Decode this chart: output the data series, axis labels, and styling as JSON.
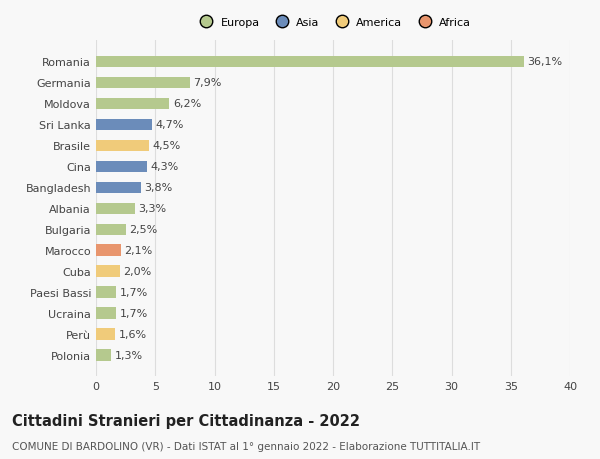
{
  "countries": [
    "Romania",
    "Germania",
    "Moldova",
    "Sri Lanka",
    "Brasile",
    "Cina",
    "Bangladesh",
    "Albania",
    "Bulgaria",
    "Marocco",
    "Cuba",
    "Paesi Bassi",
    "Ucraina",
    "Perù",
    "Polonia"
  ],
  "values": [
    36.1,
    7.9,
    6.2,
    4.7,
    4.5,
    4.3,
    3.8,
    3.3,
    2.5,
    2.1,
    2.0,
    1.7,
    1.7,
    1.6,
    1.3
  ],
  "continents": [
    "Europa",
    "Europa",
    "Europa",
    "Asia",
    "America",
    "Asia",
    "Asia",
    "Europa",
    "Europa",
    "Africa",
    "America",
    "Europa",
    "Europa",
    "America",
    "Europa"
  ],
  "colors": {
    "Europa": "#b5c98e",
    "Asia": "#6b8cba",
    "America": "#f0cb7a",
    "Africa": "#e8956d"
  },
  "legend_labels": [
    "Europa",
    "Asia",
    "America",
    "Africa"
  ],
  "legend_colors": [
    "#b5c98e",
    "#6b8cba",
    "#f0cb7a",
    "#e8956d"
  ],
  "xlim": [
    0,
    40
  ],
  "xticks": [
    0,
    5,
    10,
    15,
    20,
    25,
    30,
    35,
    40
  ],
  "title": "Cittadini Stranieri per Cittadinanza - 2022",
  "subtitle": "COMUNE DI BARDOLINO (VR) - Dati ISTAT al 1° gennaio 2022 - Elaborazione TUTTITALIA.IT",
  "bg_color": "#f8f8f8",
  "grid_color": "#dddddd",
  "bar_height": 0.55,
  "label_fontsize": 8,
  "title_fontsize": 10.5,
  "subtitle_fontsize": 7.5
}
